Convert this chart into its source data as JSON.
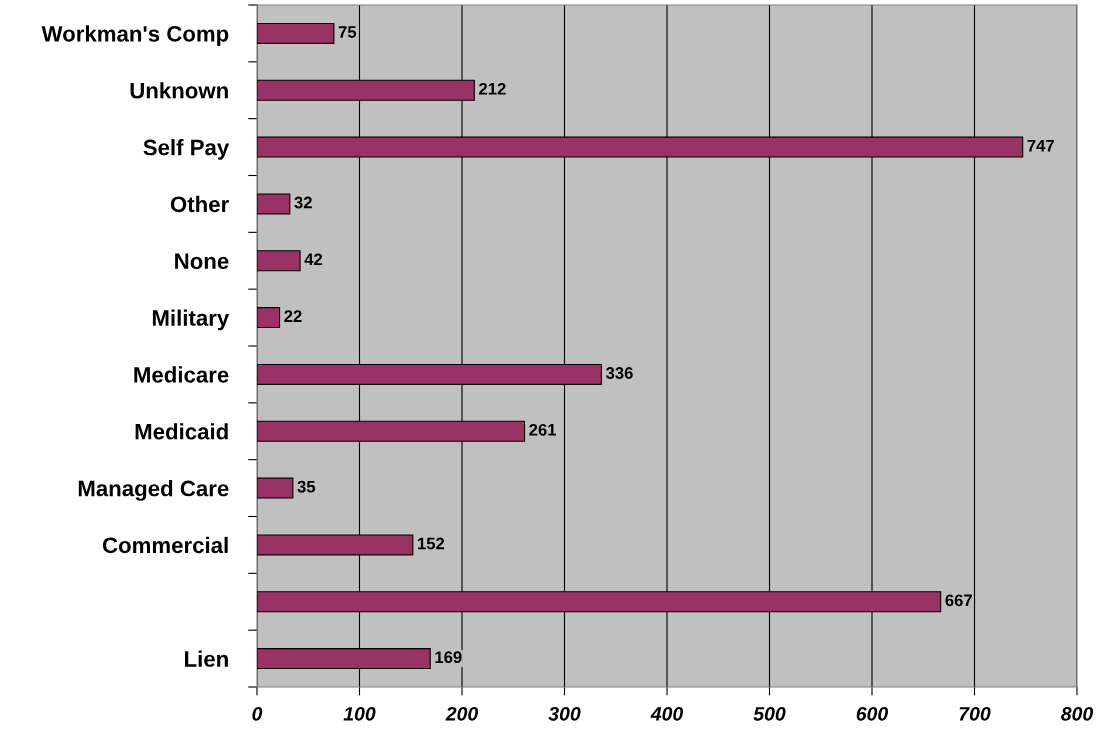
{
  "chart_data": {
    "type": "bar",
    "orientation": "horizontal",
    "categories": [
      "Workman's Comp",
      "Unknown",
      "Self Pay",
      "Other",
      "None",
      "Military",
      "Medicare",
      "Medicaid",
      "Managed Care",
      "Commercial",
      null,
      "Lien"
    ],
    "values": [
      75,
      212,
      747,
      32,
      42,
      22,
      336,
      261,
      35,
      152,
      667,
      169
    ],
    "color": "#993366",
    "data_labels": true,
    "xlim": [
      0,
      800
    ],
    "xticks": [
      0,
      100,
      200,
      300,
      400,
      500,
      600,
      700,
      800
    ],
    "grid": "x"
  }
}
